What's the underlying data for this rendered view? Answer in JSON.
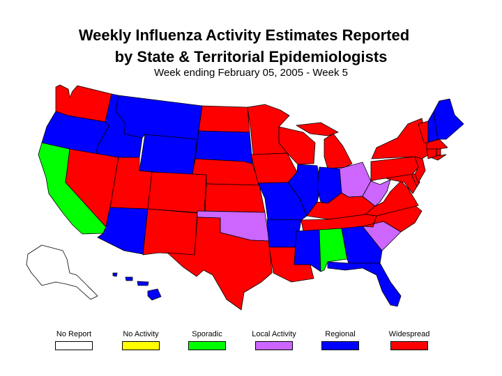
{
  "title": {
    "line1": "Weekly Influenza Activity Estimates Reported",
    "line2": "by State & Territorial Epidemiologists",
    "subtitle": "Week ending February 05, 2005 - Week 5"
  },
  "colors": {
    "no_report": "#ffffff",
    "no_activity": "#ffff00",
    "sporadic": "#00ff00",
    "local": "#cc66ff",
    "regional": "#0000ff",
    "widespread": "#ff0000"
  },
  "legend": [
    {
      "label": "No Report",
      "level": "no_report"
    },
    {
      "label": "No Activity",
      "level": "no_activity"
    },
    {
      "label": "Sporadic",
      "level": "sporadic"
    },
    {
      "label": "Local Activity",
      "level": "local"
    },
    {
      "label": "Regional",
      "level": "regional"
    },
    {
      "label": "Widespread",
      "level": "widespread"
    }
  ],
  "states": {
    "WA": "widespread",
    "OR": "regional",
    "CA": "sporadic",
    "ID": "regional",
    "NV": "widespread",
    "MT": "regional",
    "WY": "regional",
    "UT": "widespread",
    "AZ": "regional",
    "CO": "widespread",
    "NM": "widespread",
    "ND": "widespread",
    "SD": "regional",
    "NE": "widespread",
    "KS": "widespread",
    "OK": "local",
    "TX": "widespread",
    "MN": "widespread",
    "IA": "widespread",
    "MO": "regional",
    "AR": "regional",
    "LA": "widespread",
    "WI": "widespread",
    "IL": "regional",
    "MI": "widespread",
    "IN": "regional",
    "OH": "local",
    "KY": "widespread",
    "TN": "widespread",
    "MS": "regional",
    "AL": "sporadic",
    "GA": "regional",
    "FL": "regional",
    "SC": "local",
    "NC": "widespread",
    "VA": "widespread",
    "WV": "local",
    "MD": "widespread",
    "DE": "widespread",
    "PA": "widespread",
    "NJ": "widespread",
    "NY": "widespread",
    "CT": "widespread",
    "RI": "widespread",
    "MA": "widespread",
    "VT": "widespread",
    "NH": "regional",
    "ME": "regional",
    "AK": "no_report",
    "HI": "regional"
  }
}
